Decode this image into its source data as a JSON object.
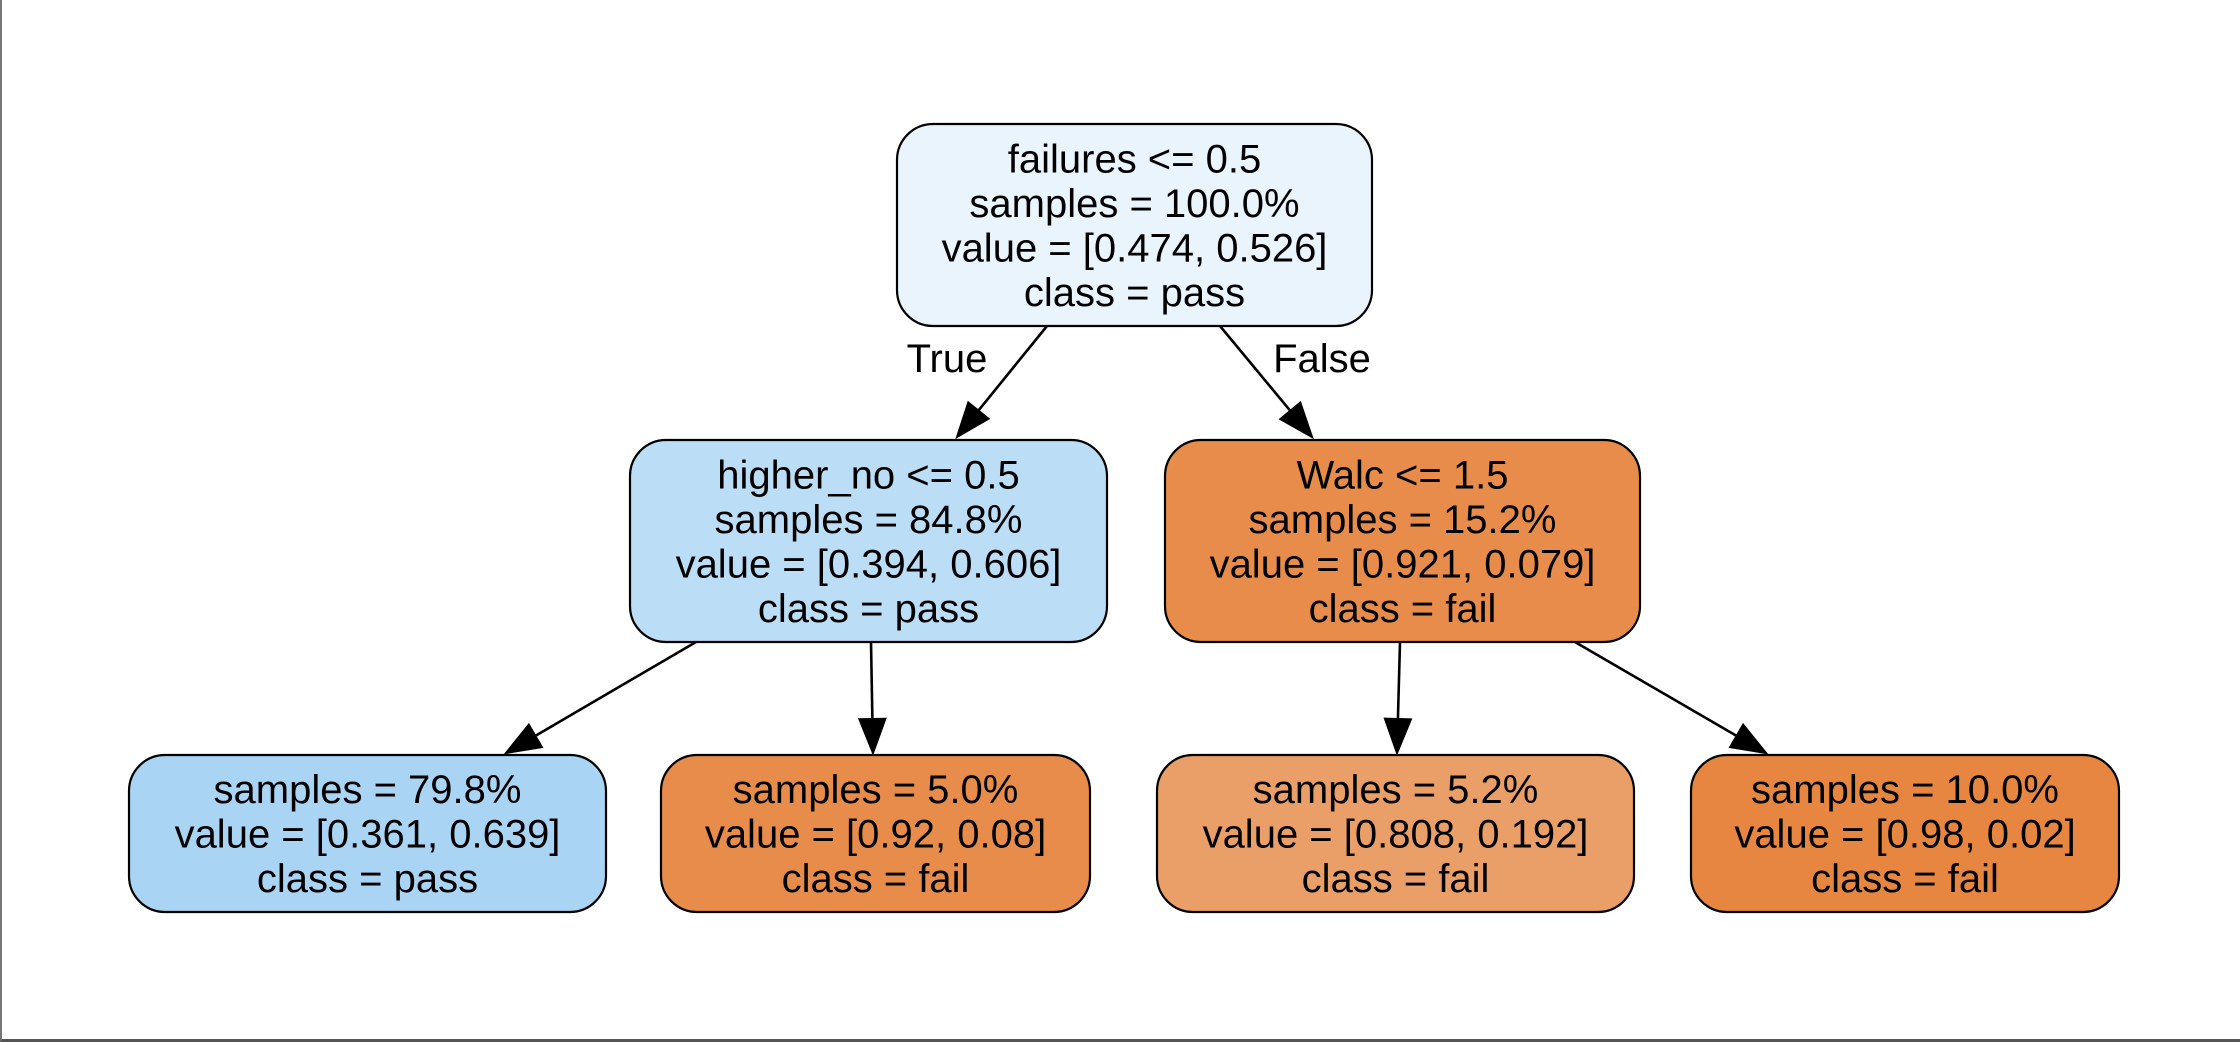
{
  "tree": {
    "nodes": [
      {
        "id": "n0",
        "lines": [
          "failures <= 0.5",
          "samples = 100.0%",
          "value = [0.474, 0.526]",
          "class = pass"
        ],
        "fill": "#eaf4fc"
      },
      {
        "id": "n1",
        "lines": [
          "higher_no <= 0.5",
          "samples = 84.8%",
          "value = [0.394, 0.606]",
          "class = pass"
        ],
        "fill": "#bbddf6"
      },
      {
        "id": "n2",
        "lines": [
          "Walc <= 1.5",
          "samples = 15.2%",
          "value = [0.921, 0.079]",
          "class = fail"
        ],
        "fill": "#e78c4b"
      },
      {
        "id": "n3",
        "lines": [
          "samples = 79.8%",
          "value = [0.361, 0.639]",
          "class = pass"
        ],
        "fill": "#a9d4f4"
      },
      {
        "id": "n4",
        "lines": [
          "samples = 5.0%",
          "value = [0.92, 0.08]",
          "class = fail"
        ],
        "fill": "#e78c4a"
      },
      {
        "id": "n5",
        "lines": [
          "samples = 5.2%",
          "value = [0.808, 0.192]",
          "class = fail"
        ],
        "fill": "#eb9f68"
      },
      {
        "id": "n6",
        "lines": [
          "samples = 10.0%",
          "value = [0.98, 0.02]",
          "class = fail"
        ],
        "fill": "#e68641"
      }
    ],
    "edges": [
      {
        "from": "n0",
        "to": "n1",
        "label": "True"
      },
      {
        "from": "n0",
        "to": "n2",
        "label": "False"
      },
      {
        "from": "n1",
        "to": "n3",
        "label": ""
      },
      {
        "from": "n1",
        "to": "n4",
        "label": ""
      },
      {
        "from": "n2",
        "to": "n5",
        "label": ""
      },
      {
        "from": "n2",
        "to": "n6",
        "label": ""
      }
    ]
  }
}
